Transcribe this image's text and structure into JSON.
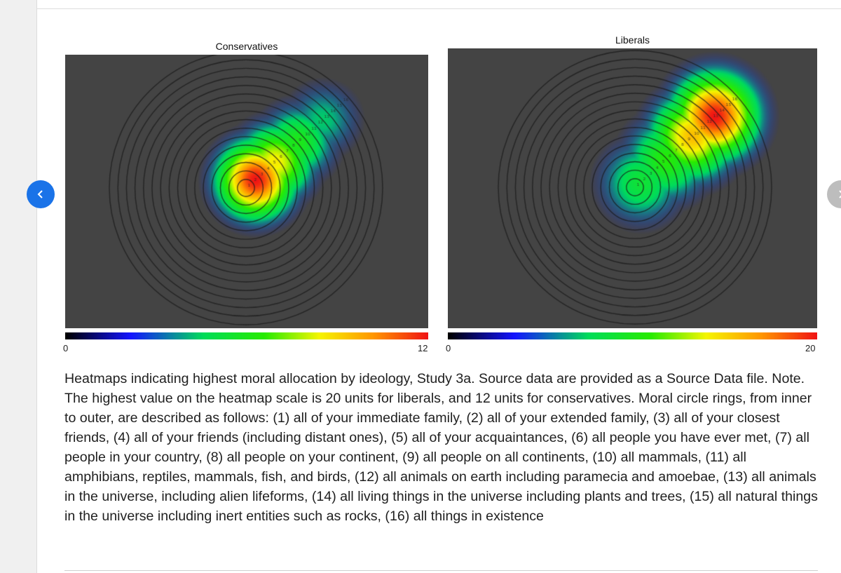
{
  "navigation": {
    "prev_icon": "chevron-left-icon",
    "next_icon": "chevron-right-icon",
    "prev_color": "#1a73e8",
    "next_color": "#bdbdbd"
  },
  "chart_data": [
    {
      "type": "heatmap",
      "title": "Conservatives",
      "colorbar": {
        "min": 0,
        "max": 12,
        "min_label": "0",
        "max_label": "12"
      },
      "rings": 16,
      "hotspots": [
        {
          "ring_position": 1.5,
          "intensity": 12
        },
        {
          "ring_position": 4.5,
          "intensity": 8
        },
        {
          "ring_position": 8.0,
          "intensity": 5
        },
        {
          "ring_position": 12.0,
          "intensity": 3
        }
      ]
    },
    {
      "type": "heatmap",
      "title": "Liberals",
      "colorbar": {
        "min": 0,
        "max": 20,
        "min_label": "0",
        "max_label": "20"
      },
      "rings": 16,
      "hotspots": [
        {
          "ring_position": 1.0,
          "intensity": 7
        },
        {
          "ring_position": 5.0,
          "intensity": 9
        },
        {
          "ring_position": 9.0,
          "intensity": 15
        },
        {
          "ring_position": 12.5,
          "intensity": 20
        }
      ]
    }
  ],
  "caption": "Heatmaps indicating highest moral allocation by ideology, Study 3a. Source data are provided as a Source Data file. Note. The highest value on the heatmap scale is 20 units for liberals, and 12 units for conservatives. Moral circle rings, from inner to outer, are described as follows: (1) all of your immediate family, (2) all of your extended family, (3) all of your closest friends, (4) all of your friends (including distant ones), (5) all of your acquaintances, (6) all people you have ever met, (7) all people in your country, (8) all people on your continent, (9) all people on all continents, (10) all mammals, (11) all amphibians, reptiles, mammals, fish, and birds, (12) all animals on earth including paramecia and amoebae, (13) all animals in the universe, including alien lifeforms, (14) all living things in the universe including plants and trees, (15) all natural things in the universe including inert entities such as rocks, (16) all things in existence"
}
